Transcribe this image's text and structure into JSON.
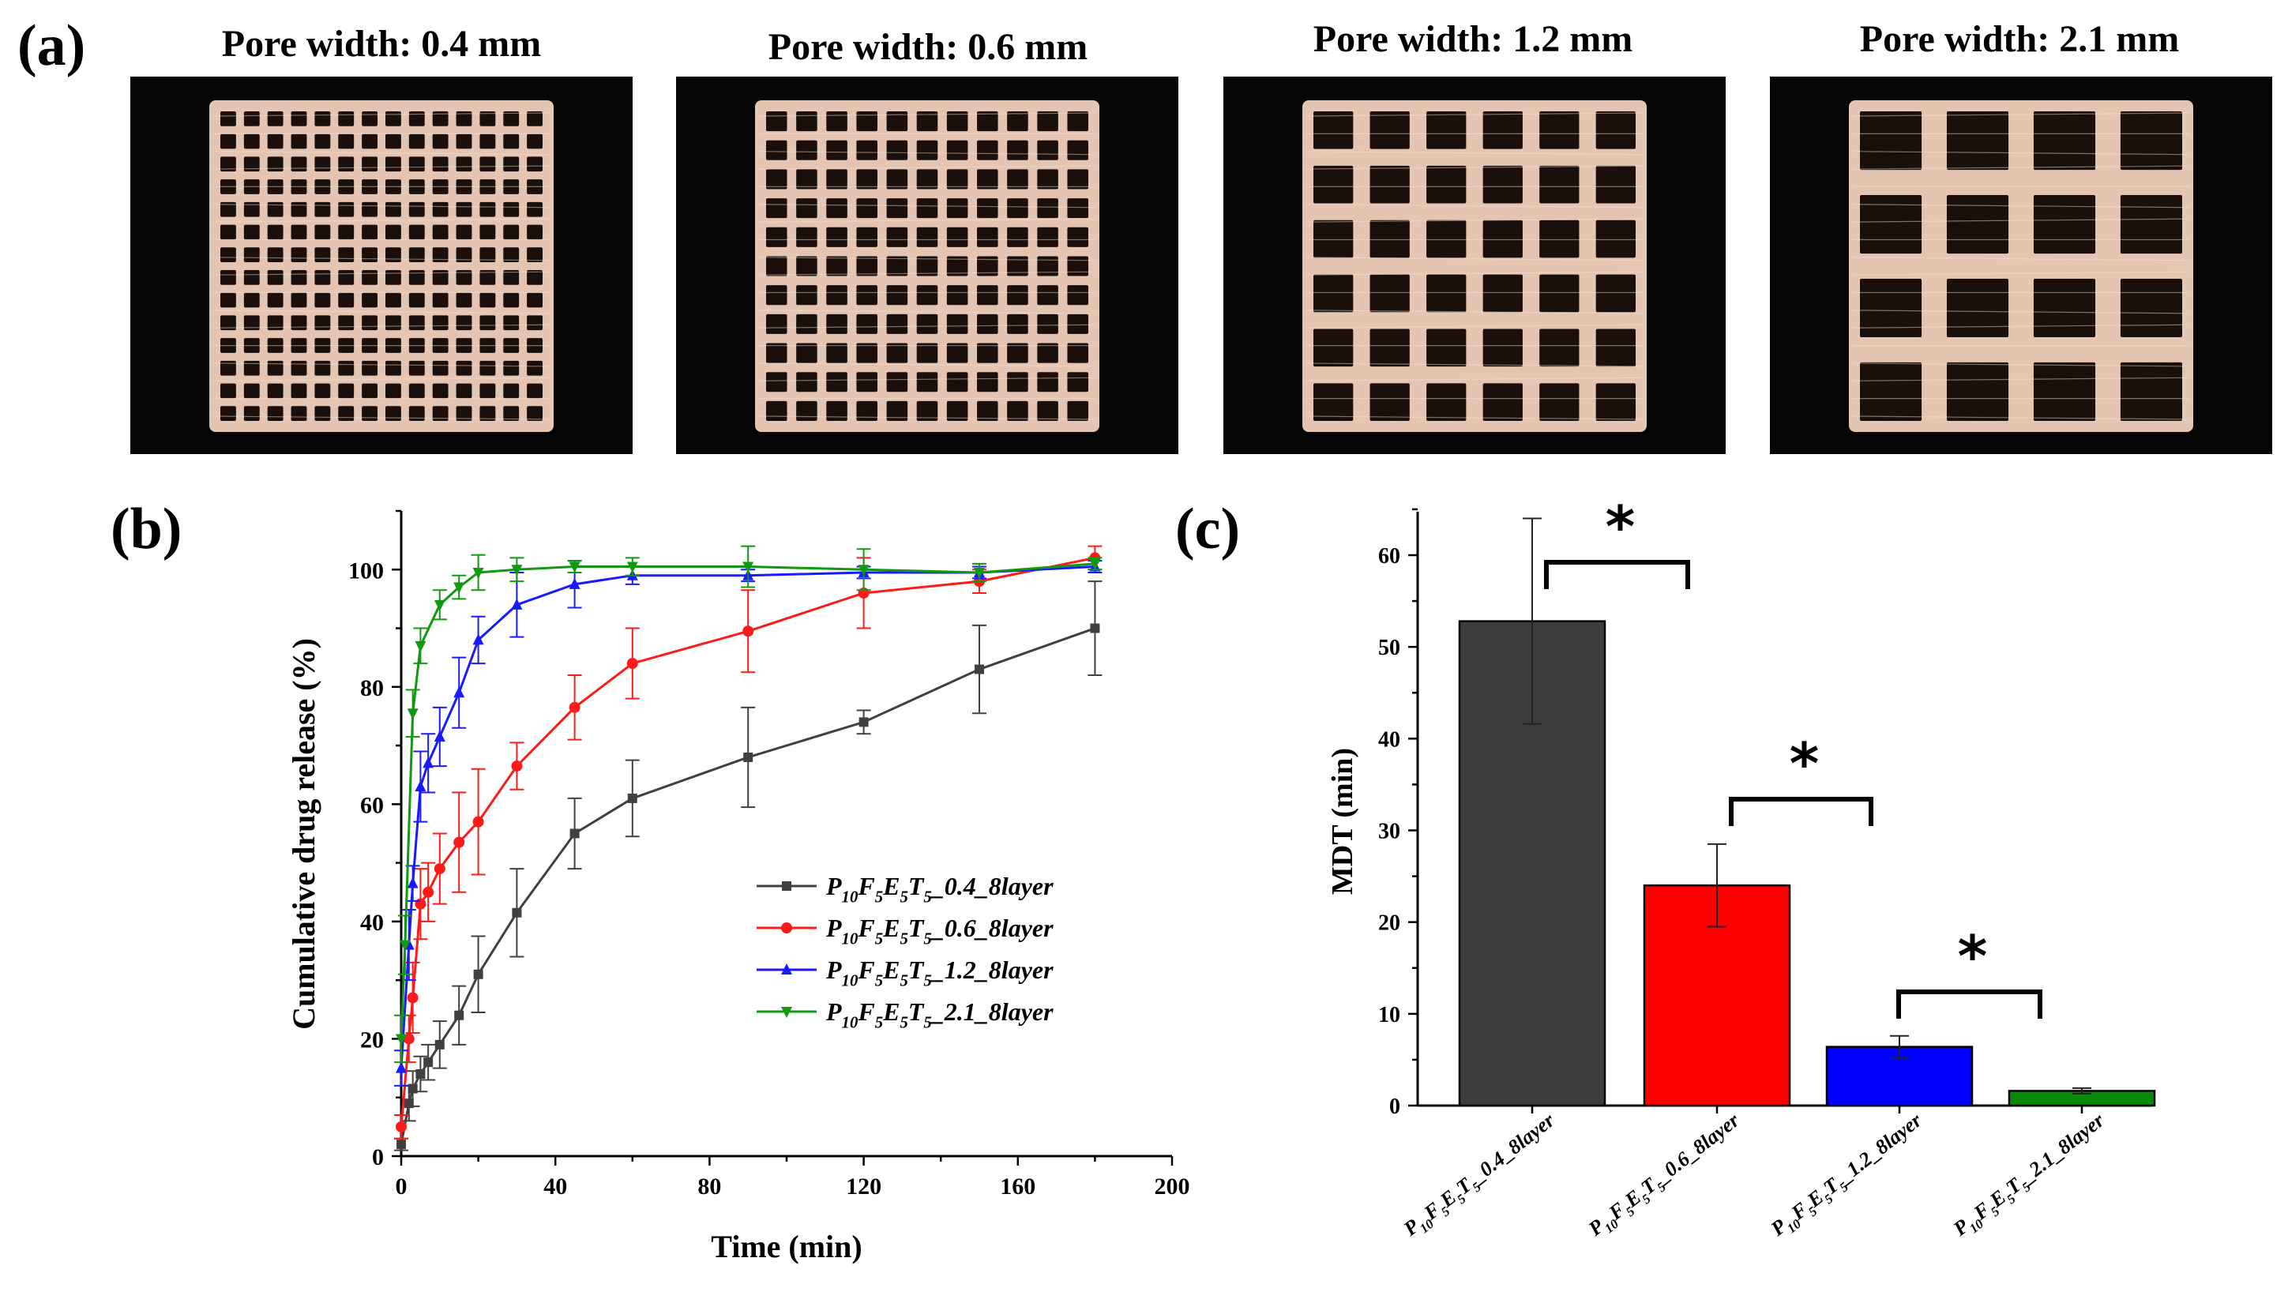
{
  "panels": {
    "a": "(a)",
    "b": "(b)",
    "c": "(c)"
  },
  "photos": [
    {
      "title": "Pore width: 0.4 mm",
      "grid": 14
    },
    {
      "title": "Pore width: 0.6 mm",
      "grid": 11
    },
    {
      "title": "Pore width: 1.2 mm",
      "grid": 6
    },
    {
      "title": "Pore width: 2.1 mm",
      "grid": 4
    }
  ],
  "colors": {
    "s1": "#404040",
    "s2": "#ff1a1a",
    "s3": "#1a1aff",
    "s4": "#119911",
    "bar1": "#3c3c3c",
    "bar2": "#ff0000",
    "bar3": "#0000ff",
    "bar4": "#0a8a0a",
    "strand": "#e3c5b1",
    "bg": "#050505"
  },
  "chart_data": [
    {
      "type": "line",
      "panel": "(b)",
      "title": "",
      "xlabel": "Time (min)",
      "ylabel": "Cumulative drug release (%)",
      "xlim": [
        0,
        200
      ],
      "ylim": [
        0,
        110
      ],
      "xticks": [
        0,
        40,
        80,
        120,
        160,
        200
      ],
      "yticks": [
        0,
        20,
        40,
        60,
        80,
        100
      ],
      "legend_position": "center-right",
      "series": [
        {
          "name": "P10F5E5T5_0.4_8layer",
          "marker": "square",
          "legend": {
            "main": "P",
            "parts": [
              [
                "10",
                "sub"
              ],
              [
                "F",
                ""
              ],
              [
                "5",
                "sub"
              ],
              [
                "E",
                ""
              ],
              [
                "5",
                "sub"
              ],
              [
                "T",
                ""
              ],
              [
                "5",
                "sub"
              ],
              [
                "_0.4_8layer",
                ""
              ]
            ]
          },
          "x": [
            0,
            2,
            3,
            5,
            7,
            10,
            15,
            20,
            30,
            45,
            60,
            90,
            120,
            150,
            180
          ],
          "y": [
            2,
            9,
            11.5,
            14,
            16,
            19,
            24,
            31,
            41.5,
            55,
            61,
            68,
            74,
            83,
            90
          ],
          "err": [
            1,
            3,
            3,
            3,
            3,
            4,
            5,
            6.5,
            7.5,
            6,
            6.5,
            8.5,
            2,
            7.5,
            8
          ]
        },
        {
          "name": "P10F5E5T5_0.6_8layer",
          "marker": "circle",
          "legend": {
            "main": "P",
            "parts": [
              [
                "10",
                "sub"
              ],
              [
                "F",
                ""
              ],
              [
                "5",
                "sub"
              ],
              [
                "E",
                ""
              ],
              [
                "5",
                "sub"
              ],
              [
                "T",
                ""
              ],
              [
                "5",
                "sub"
              ],
              [
                "_0.6_8layer",
                ""
              ]
            ]
          },
          "x": [
            0,
            2,
            3,
            5,
            7,
            10,
            15,
            20,
            30,
            45,
            60,
            90,
            120,
            150,
            180
          ],
          "y": [
            5,
            20,
            27,
            43,
            45,
            49,
            53.5,
            57,
            66.5,
            76.5,
            84,
            89.5,
            96,
            98,
            102
          ],
          "err": [
            2,
            4,
            6,
            6,
            5,
            6,
            8.5,
            9,
            4,
            5.5,
            6,
            7,
            6,
            2,
            2
          ]
        },
        {
          "name": "P10F5E5T5_1.2_8layer",
          "marker": "triangle-up",
          "legend": {
            "main": "P",
            "parts": [
              [
                "10",
                "sub"
              ],
              [
                "F",
                ""
              ],
              [
                "5",
                "sub"
              ],
              [
                "E",
                ""
              ],
              [
                "5",
                "sub"
              ],
              [
                "T",
                ""
              ],
              [
                "5",
                "sub"
              ],
              [
                "_1.2_8layer",
                ""
              ]
            ]
          },
          "x": [
            0,
            2,
            3,
            5,
            7,
            10,
            15,
            20,
            30,
            45,
            60,
            90,
            120,
            150,
            180
          ],
          "y": [
            15,
            36,
            46.5,
            63,
            67,
            71.5,
            79,
            88,
            94,
            97.5,
            99,
            99,
            99.5,
            99.5,
            100.5
          ],
          "err": [
            3,
            6,
            3,
            6,
            5,
            5,
            6,
            4,
            5.5,
            4,
            1.5,
            1,
            1,
            1,
            1
          ]
        },
        {
          "name": "P10F5E5T5_2.1_8layer",
          "marker": "triangle-down",
          "legend": {
            "main": "P",
            "parts": [
              [
                "10",
                "sub"
              ],
              [
                "F",
                ""
              ],
              [
                "5",
                "sub"
              ],
              [
                "E",
                ""
              ],
              [
                "5",
                "sub"
              ],
              [
                "T",
                ""
              ],
              [
                "5",
                "sub"
              ],
              [
                "_2.1_8layer",
                ""
              ]
            ]
          },
          "x": [
            0,
            1,
            3,
            5,
            10,
            15,
            20,
            30,
            45,
            60,
            90,
            120,
            150,
            180
          ],
          "y": [
            20,
            36,
            75.5,
            87,
            94,
            97,
            99.5,
            100,
            100.5,
            100.5,
            100.5,
            100,
            99.5,
            101
          ],
          "err": [
            4,
            5,
            4,
            3,
            2.5,
            2,
            3,
            2,
            1,
            1.5,
            3.5,
            3.5,
            1.5,
            1
          ]
        }
      ]
    },
    {
      "type": "bar",
      "panel": "(c)",
      "title": "",
      "xlabel": "",
      "ylabel": "MDT (min)",
      "ylim": [
        0,
        65
      ],
      "yticks": [
        0,
        10,
        20,
        30,
        40,
        50,
        60
      ],
      "categories": [
        "P10F5E5T5_0.4_8layer",
        "P10F5E5T5_0.6_8layer",
        "P10F5E5T5_1.2_8layer",
        "P10F5E5T5_2.1_8layer"
      ],
      "category_labels": [
        {
          "main": "P",
          "parts": [
            [
              "10",
              "sub"
            ],
            [
              "F",
              ""
            ],
            [
              "5",
              "sub"
            ],
            [
              "E",
              ""
            ],
            [
              "5",
              "sub"
            ],
            [
              "T",
              ""
            ],
            [
              "5",
              "sub"
            ],
            [
              "_0.4_8layer",
              ""
            ]
          ]
        },
        {
          "main": "P",
          "parts": [
            [
              "10",
              "sub"
            ],
            [
              "F",
              ""
            ],
            [
              "5",
              "sub"
            ],
            [
              "E",
              ""
            ],
            [
              "5",
              "sub"
            ],
            [
              "T",
              ""
            ],
            [
              "5",
              "sub"
            ],
            [
              "_0.6_8layer",
              ""
            ]
          ]
        },
        {
          "main": "P",
          "parts": [
            [
              "10",
              "sub"
            ],
            [
              "F",
              ""
            ],
            [
              "5",
              "sub"
            ],
            [
              "E",
              ""
            ],
            [
              "5",
              "sub"
            ],
            [
              "T",
              ""
            ],
            [
              "5",
              "sub"
            ],
            [
              "_1.2_8layer",
              ""
            ]
          ]
        },
        {
          "main": "P",
          "parts": [
            [
              "10",
              "sub"
            ],
            [
              "F",
              ""
            ],
            [
              "5",
              "sub"
            ],
            [
              "E",
              ""
            ],
            [
              "5",
              "sub"
            ],
            [
              "T",
              ""
            ],
            [
              "5",
              "sub"
            ],
            [
              "_2.1_8layer",
              ""
            ]
          ]
        }
      ],
      "values": [
        52.8,
        24,
        6.4,
        1.6
      ],
      "errors": [
        11.2,
        4.5,
        1.2,
        0.3
      ],
      "significance": [
        {
          "from": 0,
          "to": 1,
          "label": "*"
        },
        {
          "from": 1,
          "to": 2,
          "label": "*"
        },
        {
          "from": 2,
          "to": 3,
          "label": "*"
        }
      ]
    }
  ]
}
